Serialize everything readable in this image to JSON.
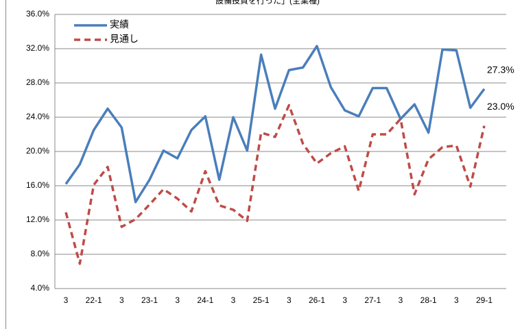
{
  "chart_data": {
    "type": "line",
    "title": "設備投資を行った」(全業種)",
    "categories": [
      "3",
      null,
      "22-1",
      null,
      "3",
      null,
      "23-1",
      null,
      "3",
      null,
      "24-1",
      null,
      "3",
      null,
      "25-1",
      null,
      "3",
      null,
      "26-1",
      null,
      "3",
      null,
      "27-1",
      null,
      "3",
      null,
      "28-1",
      null,
      "3",
      null,
      "29-1"
    ],
    "series": [
      {
        "name": "実績",
        "color": "#4a7ebb",
        "dash": false,
        "values": [
          16.2,
          18.5,
          22.5,
          25.0,
          22.8,
          14.1,
          16.7,
          20.1,
          19.2,
          22.5,
          24.1,
          16.7,
          24.0,
          20.1,
          31.3,
          25.0,
          29.5,
          29.8,
          32.3,
          27.5,
          24.8,
          24.1,
          27.4,
          27.4,
          23.8,
          25.5,
          22.2,
          31.9,
          31.8,
          25.1,
          27.3
        ],
        "value_labels": [
          null,
          null,
          null,
          null,
          null,
          null,
          null,
          null,
          null,
          null,
          null,
          null,
          null,
          null,
          null,
          null,
          null,
          null,
          null,
          null,
          null,
          null,
          null,
          null,
          null,
          null,
          null,
          null,
          null,
          null,
          "27.3%"
        ]
      },
      {
        "name": "見通し",
        "color": "#be4b48",
        "dash": true,
        "values": [
          12.9,
          6.9,
          16.1,
          18.2,
          11.2,
          12.1,
          13.8,
          15.6,
          14.5,
          13.0,
          17.7,
          13.7,
          13.2,
          11.9,
          22.2,
          21.7,
          25.4,
          20.9,
          18.6,
          19.8,
          20.6,
          15.4,
          22.0,
          22.0,
          23.8,
          15.0,
          19.1,
          20.5,
          20.7,
          15.9,
          23.0
        ],
        "value_labels": [
          null,
          null,
          null,
          null,
          null,
          null,
          null,
          null,
          null,
          null,
          null,
          null,
          null,
          null,
          null,
          null,
          null,
          null,
          null,
          null,
          null,
          null,
          null,
          null,
          null,
          null,
          null,
          null,
          null,
          null,
          "23.0%"
        ]
      }
    ],
    "ylim": [
      4,
      36
    ],
    "yticks": [
      {
        "value": 4,
        "label": "4.0%"
      },
      {
        "value": 8,
        "label": "8.0%"
      },
      {
        "value": 12,
        "label": "12.0%"
      },
      {
        "value": 16,
        "label": "16.0%"
      },
      {
        "value": 20,
        "label": "20.0%"
      },
      {
        "value": 24,
        "label": "24.0%"
      },
      {
        "value": 28,
        "label": "28.0%"
      },
      {
        "value": 32,
        "label": "32.0%"
      },
      {
        "value": 36,
        "label": "36.0%"
      }
    ],
    "grid": true,
    "legend": "top-left"
  }
}
